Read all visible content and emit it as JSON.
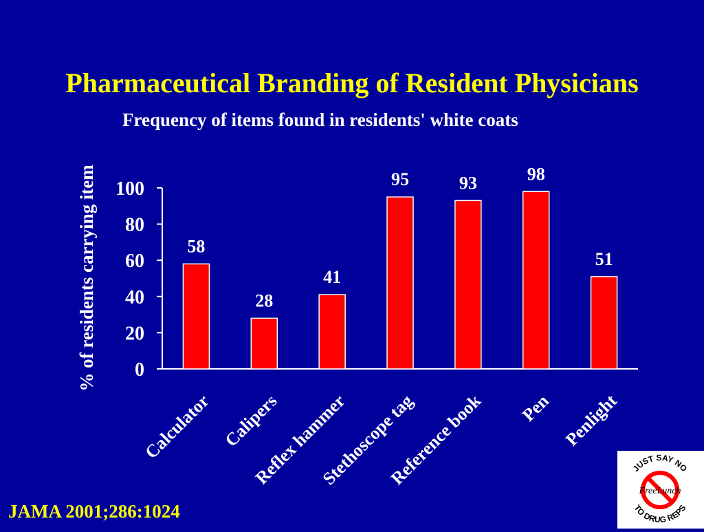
{
  "slide": {
    "title": "Pharmaceutical Branding of Resident Physicians",
    "citation": "JAMA 2001;286:1024"
  },
  "badge": {
    "top_text": "JUST SAY NO",
    "bottom_text": "TO DRUG REPS",
    "center_text": "FreeLunch",
    "icon": "no-symbol-icon",
    "ring_color": "#ff0000"
  },
  "chart_data": {
    "type": "bar",
    "title": "Frequency of items found in residents' white coats",
    "xlabel": "",
    "ylabel": "% of residents carrying item",
    "categories": [
      "Calculator",
      "Calipers",
      "Reflex hammer",
      "Stethoscope tag",
      "Reference  book",
      "Pen",
      "Penlight"
    ],
    "values": [
      58,
      28,
      41,
      95,
      93,
      98,
      51
    ],
    "ylim": [
      0,
      100
    ],
    "yticks": [
      0,
      20,
      40,
      60,
      80,
      100
    ],
    "bar_color": "#ff0000",
    "data_labels": true,
    "grid": false,
    "legend": "none"
  }
}
